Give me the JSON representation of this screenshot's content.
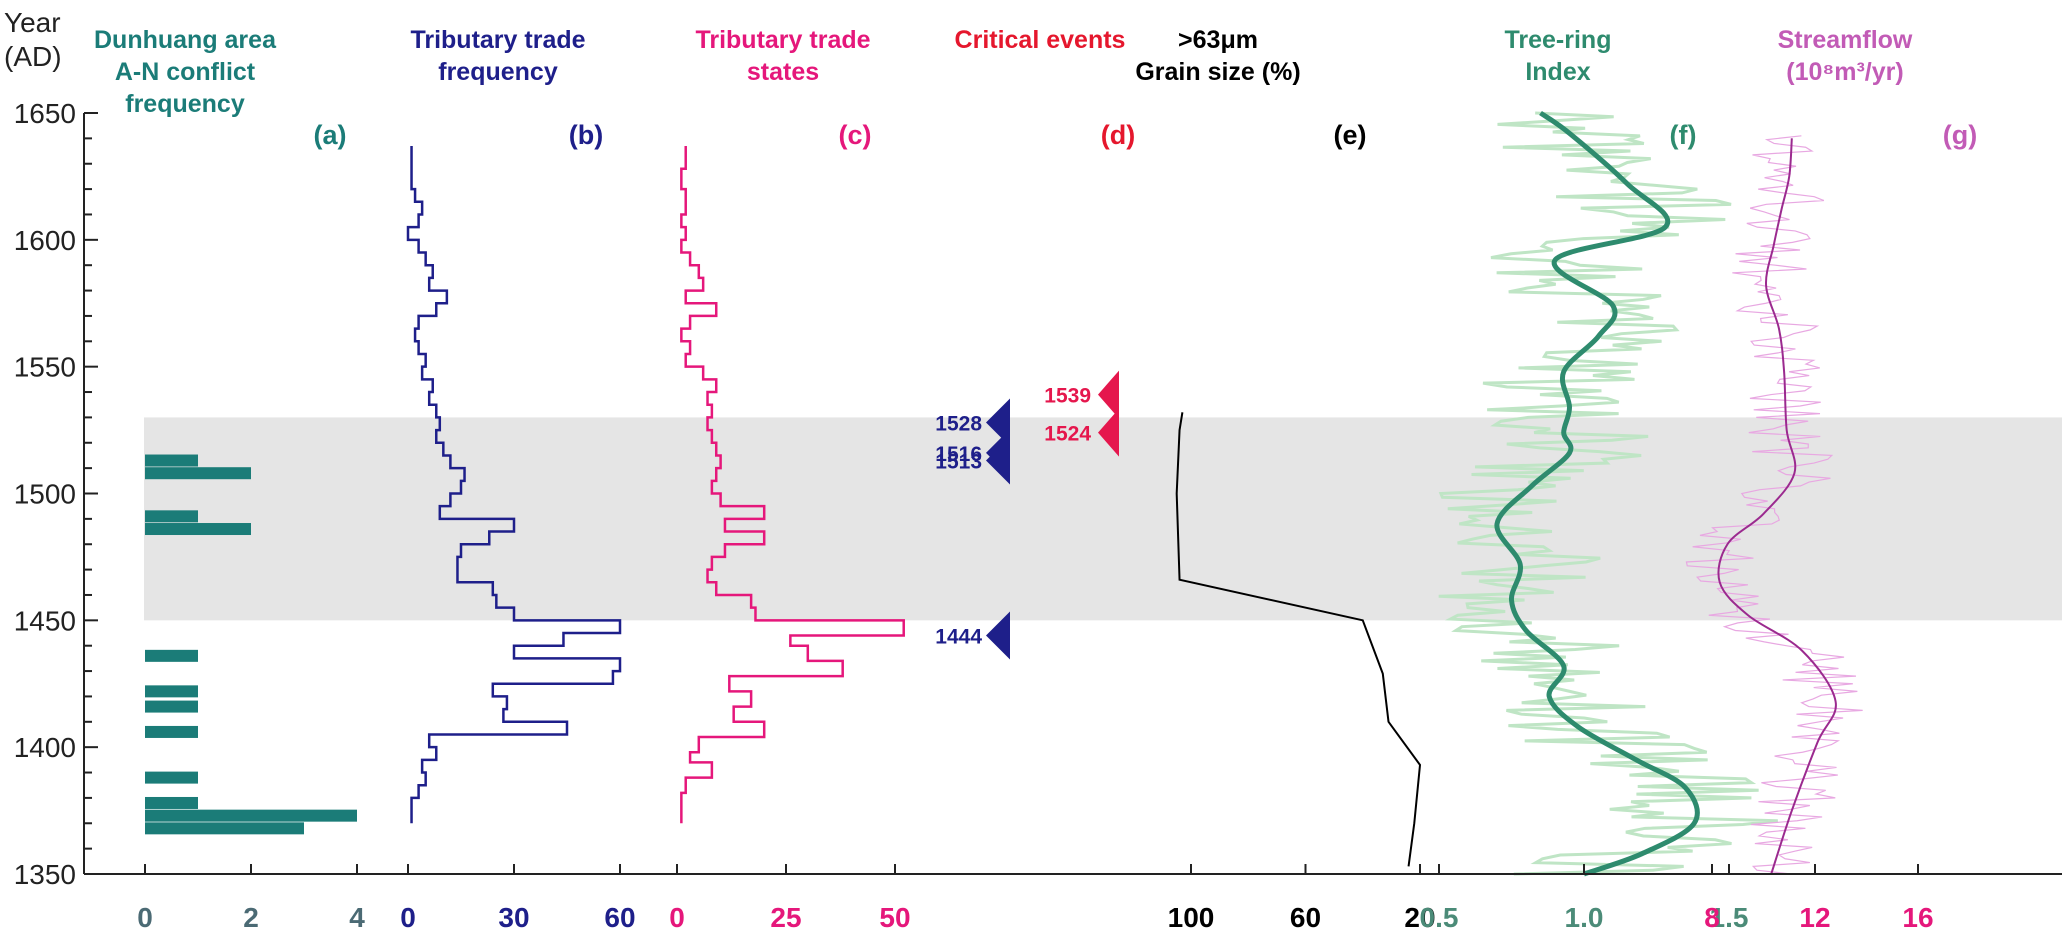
{
  "chart_data": {
    "type": "line",
    "y_axis": {
      "label_line1": "Year",
      "label_line2": "(AD)",
      "range": [
        1350,
        1650
      ],
      "ticks": [
        1350,
        1400,
        1450,
        1500,
        1550,
        1600,
        1650
      ],
      "grid": false
    },
    "shaded_interval": [
      1450,
      1530
    ],
    "panels": [
      {
        "id": "a",
        "letter": "(a)",
        "type": "bar",
        "title": [
          "Dunhuang area",
          "A-N conflict",
          "frequency"
        ],
        "color": "#1b7c78",
        "title_color": "#1b7c78",
        "tick_color": "#4b6a74",
        "xlim": [
          0,
          4
        ],
        "xticks": [
          0,
          2,
          4
        ],
        "bars": [
          {
            "year": 1368,
            "value": 3
          },
          {
            "year": 1373,
            "value": 4
          },
          {
            "year": 1378,
            "value": 1
          },
          {
            "year": 1388,
            "value": 1
          },
          {
            "year": 1406,
            "value": 1
          },
          {
            "year": 1416,
            "value": 1
          },
          {
            "year": 1422,
            "value": 1
          },
          {
            "year": 1436,
            "value": 1
          },
          {
            "year": 1486,
            "value": 2
          },
          {
            "year": 1491,
            "value": 1
          },
          {
            "year": 1508,
            "value": 2
          },
          {
            "year": 1513,
            "value": 1
          }
        ]
      },
      {
        "id": "b",
        "letter": "(b)",
        "type": "step",
        "title": [
          "Tributary trade",
          "frequency"
        ],
        "color": "#1e1f8a",
        "title_color": "#1e1f8a",
        "tick_color": "#1e1f8a",
        "xlim": [
          0,
          60
        ],
        "xticks": [
          0,
          30,
          60
        ],
        "steps": [
          [
            1370,
            1380,
            1
          ],
          [
            1380,
            1385,
            3
          ],
          [
            1385,
            1390,
            5
          ],
          [
            1390,
            1395,
            4
          ],
          [
            1395,
            1400,
            8
          ],
          [
            1400,
            1405,
            6
          ],
          [
            1405,
            1410,
            45
          ],
          [
            1410,
            1415,
            27
          ],
          [
            1415,
            1420,
            28
          ],
          [
            1420,
            1425,
            24
          ],
          [
            1425,
            1430,
            58
          ],
          [
            1430,
            1435,
            60
          ],
          [
            1435,
            1440,
            30
          ],
          [
            1440,
            1445,
            44
          ],
          [
            1445,
            1450,
            60
          ],
          [
            1450,
            1455,
            30
          ],
          [
            1455,
            1460,
            25
          ],
          [
            1460,
            1465,
            24
          ],
          [
            1465,
            1470,
            14
          ],
          [
            1470,
            1475,
            14
          ],
          [
            1475,
            1480,
            15
          ],
          [
            1480,
            1485,
            23
          ],
          [
            1485,
            1490,
            30
          ],
          [
            1490,
            1495,
            9
          ],
          [
            1495,
            1500,
            12
          ],
          [
            1500,
            1505,
            15
          ],
          [
            1505,
            1510,
            16
          ],
          [
            1510,
            1515,
            12
          ],
          [
            1515,
            1520,
            10
          ],
          [
            1520,
            1525,
            8
          ],
          [
            1525,
            1530,
            9
          ],
          [
            1530,
            1535,
            8
          ],
          [
            1535,
            1540,
            6
          ],
          [
            1540,
            1545,
            7
          ],
          [
            1545,
            1550,
            4
          ],
          [
            1550,
            1555,
            5
          ],
          [
            1555,
            1560,
            3
          ],
          [
            1560,
            1565,
            2
          ],
          [
            1565,
            1570,
            3
          ],
          [
            1570,
            1575,
            8
          ],
          [
            1575,
            1580,
            11
          ],
          [
            1580,
            1585,
            6
          ],
          [
            1585,
            1590,
            7
          ],
          [
            1590,
            1595,
            5
          ],
          [
            1595,
            1600,
            3
          ],
          [
            1600,
            1605,
            0
          ],
          [
            1605,
            1610,
            3
          ],
          [
            1610,
            1615,
            4
          ],
          [
            1615,
            1620,
            2
          ],
          [
            1620,
            1625,
            1
          ],
          [
            1625,
            1630,
            1
          ],
          [
            1630,
            1637,
            1
          ]
        ]
      },
      {
        "id": "c",
        "letter": "(c)",
        "type": "step",
        "title": [
          "Tributary trade",
          "states"
        ],
        "color": "#e5177b",
        "title_color": "#e5177b",
        "tick_color": "#e5177b",
        "xlim": [
          0,
          50
        ],
        "xticks": [
          0,
          25,
          50
        ],
        "steps": [
          [
            1370,
            1382,
            1
          ],
          [
            1382,
            1388,
            2
          ],
          [
            1388,
            1394,
            8
          ],
          [
            1394,
            1398,
            3
          ],
          [
            1398,
            1404,
            5
          ],
          [
            1404,
            1410,
            20
          ],
          [
            1410,
            1416,
            13
          ],
          [
            1416,
            1422,
            17
          ],
          [
            1422,
            1428,
            12
          ],
          [
            1428,
            1434,
            38
          ],
          [
            1434,
            1440,
            30
          ],
          [
            1440,
            1444,
            26
          ],
          [
            1444,
            1450,
            52
          ],
          [
            1450,
            1455,
            18
          ],
          [
            1455,
            1460,
            17
          ],
          [
            1460,
            1465,
            9
          ],
          [
            1465,
            1470,
            7
          ],
          [
            1470,
            1475,
            8
          ],
          [
            1475,
            1480,
            11
          ],
          [
            1480,
            1485,
            20
          ],
          [
            1485,
            1490,
            11
          ],
          [
            1490,
            1495,
            20
          ],
          [
            1495,
            1500,
            10
          ],
          [
            1500,
            1505,
            8
          ],
          [
            1505,
            1510,
            9
          ],
          [
            1510,
            1515,
            10
          ],
          [
            1515,
            1520,
            9
          ],
          [
            1520,
            1525,
            8
          ],
          [
            1525,
            1530,
            7
          ],
          [
            1530,
            1535,
            8
          ],
          [
            1535,
            1540,
            7
          ],
          [
            1540,
            1545,
            9
          ],
          [
            1545,
            1550,
            6
          ],
          [
            1550,
            1555,
            2
          ],
          [
            1555,
            1560,
            3
          ],
          [
            1560,
            1565,
            1
          ],
          [
            1565,
            1570,
            3
          ],
          [
            1570,
            1575,
            9
          ],
          [
            1575,
            1580,
            2
          ],
          [
            1580,
            1585,
            6
          ],
          [
            1585,
            1590,
            5
          ],
          [
            1590,
            1595,
            3
          ],
          [
            1595,
            1600,
            1
          ],
          [
            1600,
            1605,
            2
          ],
          [
            1605,
            1610,
            1
          ],
          [
            1610,
            1620,
            2
          ],
          [
            1620,
            1628,
            1
          ],
          [
            1628,
            1637,
            2
          ]
        ]
      },
      {
        "id": "d",
        "letter": "(d)",
        "type": "events",
        "title": [
          "Critical events"
        ],
        "title_color": "#e5172d",
        "events": [
          {
            "year": 1539,
            "label": "1539",
            "color": "#e5174d",
            "side": "right"
          },
          {
            "year": 1524,
            "label": "1524",
            "color": "#e5174d",
            "side": "right"
          },
          {
            "year": 1528,
            "label": "1528",
            "color": "#1e1f8a",
            "side": "left"
          },
          {
            "year": 1516,
            "label": "1516",
            "color": "#1e1f8a",
            "side": "left"
          },
          {
            "year": 1513,
            "label": "1513",
            "color": "#1e1f8a",
            "side": "left"
          },
          {
            "year": 1444,
            "label": "1444",
            "color": "#1e1f8a",
            "side": "left"
          }
        ]
      },
      {
        "id": "e",
        "letter": "(e)",
        "type": "line",
        "title": [
          ">63μm",
          "Grain size (%)"
        ],
        "color": "#000000",
        "title_color": "#000000",
        "tick_color": "#000000",
        "reversed": true,
        "xlim": [
          100,
          20
        ],
        "xticks": [
          100,
          60,
          20
        ],
        "points": [
          [
            103,
            1532
          ],
          [
            104,
            1525
          ],
          [
            105,
            1500
          ],
          [
            104,
            1466
          ],
          [
            40,
            1450
          ],
          [
            33,
            1429
          ],
          [
            31,
            1410
          ],
          [
            20,
            1393
          ],
          [
            22,
            1370
          ],
          [
            24,
            1353
          ]
        ]
      },
      {
        "id": "f",
        "letter": "(f)",
        "type": "line",
        "title": [
          "Tree-ring",
          "Index"
        ],
        "color": "#2e8b6e",
        "title_color": "#2e8b6e",
        "tick_color": "#4b8b78",
        "raw_color": "#bfe5c5",
        "xlim": [
          0.3,
          1.7
        ],
        "xticks": [
          0.5,
          1.0,
          1.5
        ],
        "smooth": [
          [
            1.0,
            1350
          ],
          [
            1.2,
            1358
          ],
          [
            1.38,
            1370
          ],
          [
            1.35,
            1384
          ],
          [
            1.18,
            1395
          ],
          [
            0.98,
            1408
          ],
          [
            0.88,
            1420
          ],
          [
            0.93,
            1432
          ],
          [
            0.8,
            1446
          ],
          [
            0.75,
            1458
          ],
          [
            0.78,
            1472
          ],
          [
            0.7,
            1488
          ],
          [
            0.82,
            1503
          ],
          [
            0.95,
            1516
          ],
          [
            0.93,
            1524
          ],
          [
            0.95,
            1534
          ],
          [
            0.93,
            1548
          ],
          [
            1.05,
            1562
          ],
          [
            1.1,
            1574
          ],
          [
            0.9,
            1592
          ],
          [
            1.28,
            1605
          ],
          [
            1.15,
            1622
          ],
          [
            0.95,
            1642
          ],
          [
            0.85,
            1650
          ]
        ],
        "raw_amplitude": 0.3,
        "raw_start": 1350,
        "raw_end": 1650
      },
      {
        "id": "g",
        "letter": "(g)",
        "type": "line",
        "title": [
          "Streamflow",
          "(10⁸m³/yr)"
        ],
        "color": "#9b2a8f",
        "title_color": "#c25bb6",
        "tick_color": "#e5177b",
        "raw_color": "#e8a8e2",
        "xlim": [
          5,
          17
        ],
        "xticks": [
          8,
          12,
          16
        ],
        "smooth": [
          [
            10.3,
            1350
          ],
          [
            11.1,
            1375
          ],
          [
            12.1,
            1402
          ],
          [
            12.8,
            1418
          ],
          [
            11.5,
            1438
          ],
          [
            9.4,
            1452
          ],
          [
            8.3,
            1465
          ],
          [
            8.6,
            1480
          ],
          [
            10.0,
            1492
          ],
          [
            11.2,
            1508
          ],
          [
            10.9,
            1525
          ],
          [
            10.8,
            1548
          ],
          [
            10.6,
            1565
          ],
          [
            10.1,
            1582
          ],
          [
            10.4,
            1598
          ],
          [
            10.7,
            1612
          ],
          [
            11.0,
            1625
          ],
          [
            11.1,
            1640
          ]
        ],
        "raw_amplitude": 1.6,
        "raw_start": 1350,
        "raw_end": 1642
      }
    ]
  }
}
